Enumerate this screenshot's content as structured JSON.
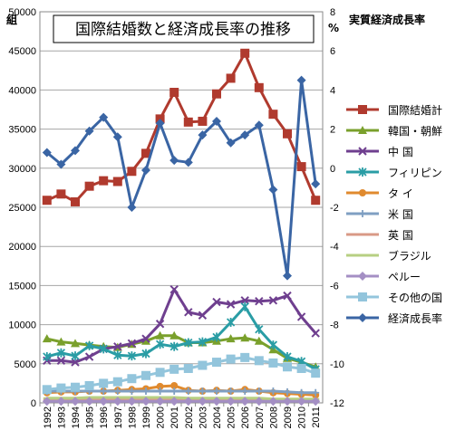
{
  "chart_data": {
    "type": "line",
    "title": "国際結婚数と経済成長率の推移",
    "ylabel_left_unit": "組",
    "ylabel_right_unit": "%",
    "ylabel_right": "実質経済成長率",
    "ylim_left": [
      0,
      50000
    ],
    "ylim_right": [
      -12,
      8
    ],
    "left_ticks": [
      0,
      5000,
      10000,
      15000,
      20000,
      25000,
      30000,
      35000,
      40000,
      45000,
      50000
    ],
    "right_ticks": [
      -12,
      -10,
      -8,
      -6,
      -4,
      -2,
      0,
      2,
      4,
      6,
      8
    ],
    "categories": [
      "1992",
      "1993",
      "1994",
      "1995",
      "1996",
      "1997",
      "1998",
      "1999",
      "2000",
      "2001",
      "2002",
      "2003",
      "2004",
      "2005",
      "2006",
      "2007",
      "2008",
      "2009",
      "2010",
      "2011"
    ],
    "grid": true,
    "legend_position": "right",
    "series": [
      {
        "name": "国際結婚計",
        "axis": "left",
        "color": "#b03a2e",
        "marker": "square",
        "values": [
          25900,
          26700,
          25700,
          27700,
          28400,
          28300,
          29600,
          31900,
          36300,
          39700,
          35900,
          36000,
          39500,
          41500,
          44700,
          40300,
          36900,
          34400,
          30200,
          25900
        ]
      },
      {
        "name": "韓国・朝鮮",
        "axis": "left",
        "color": "#7aa02c",
        "marker": "triangle",
        "values": [
          8200,
          7800,
          7600,
          7400,
          7200,
          7100,
          7500,
          7900,
          8600,
          8600,
          7700,
          7700,
          7900,
          8200,
          8300,
          7900,
          6800,
          5700,
          5200,
          4600
        ]
      },
      {
        "name": "中 国",
        "axis": "left",
        "color": "#6f3f8f",
        "marker": "x",
        "values": [
          5400,
          5400,
          5200,
          5900,
          6900,
          7200,
          7600,
          8200,
          10100,
          14500,
          11600,
          11200,
          12900,
          12600,
          13100,
          13000,
          13100,
          13700,
          11000,
          8900
        ]
      },
      {
        "name": "フィリピン",
        "axis": "left",
        "color": "#2a9da5",
        "marker": "asterisk",
        "values": [
          5900,
          6400,
          6000,
          7300,
          6900,
          6100,
          6000,
          6300,
          7500,
          7200,
          7700,
          7800,
          8400,
          10300,
          12300,
          9400,
          7400,
          5900,
          5300,
          4300
        ]
      },
      {
        "name": "タ イ",
        "axis": "left",
        "color": "#e08a2e",
        "marker": "circle",
        "values": [
          1300,
          1400,
          1400,
          1500,
          1500,
          1600,
          1700,
          1800,
          2100,
          2200,
          1600,
          1500,
          1600,
          1500,
          1700,
          1500,
          1300,
          1200,
          1100,
          1000
        ]
      },
      {
        "name": "米 国",
        "axis": "left",
        "color": "#7f9fc2",
        "marker": "plus",
        "values": [
          1500,
          1500,
          1500,
          1500,
          1500,
          1500,
          1500,
          1500,
          1500,
          1500,
          1500,
          1500,
          1500,
          1500,
          1500,
          1500,
          1500,
          1400,
          1300,
          1300
        ]
      },
      {
        "name": "英 国",
        "axis": "left",
        "color": "#d99a86",
        "marker": "dash",
        "values": [
          400,
          400,
          400,
          400,
          400,
          400,
          400,
          400,
          400,
          400,
          400,
          400,
          400,
          400,
          400,
          400,
          400,
          400,
          400,
          400
        ]
      },
      {
        "name": "ブラジル",
        "axis": "left",
        "color": "#b7cf82",
        "marker": "dash",
        "values": [
          600,
          600,
          600,
          700,
          700,
          700,
          700,
          700,
          700,
          700,
          600,
          600,
          600,
          600,
          600,
          600,
          500,
          500,
          500,
          500
        ]
      },
      {
        "name": "ペルー",
        "axis": "left",
        "color": "#a48fc4",
        "marker": "diamond",
        "values": [
          200,
          200,
          200,
          200,
          200,
          200,
          200,
          200,
          200,
          200,
          200,
          200,
          200,
          200,
          200,
          200,
          200,
          200,
          200,
          200
        ]
      },
      {
        "name": "その他の国",
        "axis": "left",
        "color": "#93c5dc",
        "marker": "square",
        "values": [
          1700,
          1900,
          2000,
          2200,
          2500,
          2700,
          3100,
          3500,
          3900,
          4300,
          4400,
          4800,
          5200,
          5600,
          5800,
          5400,
          5100,
          4600,
          4400,
          3800
        ]
      },
      {
        "name": "経済成長率",
        "axis": "right",
        "color": "#3a65a4",
        "marker": "diamond",
        "values": [
          0.8,
          0.2,
          0.9,
          1.9,
          2.6,
          1.6,
          -2.0,
          -0.1,
          2.3,
          0.4,
          0.3,
          1.7,
          2.4,
          1.3,
          1.7,
          2.2,
          -1.1,
          -5.5,
          4.5,
          -0.8
        ]
      }
    ]
  }
}
